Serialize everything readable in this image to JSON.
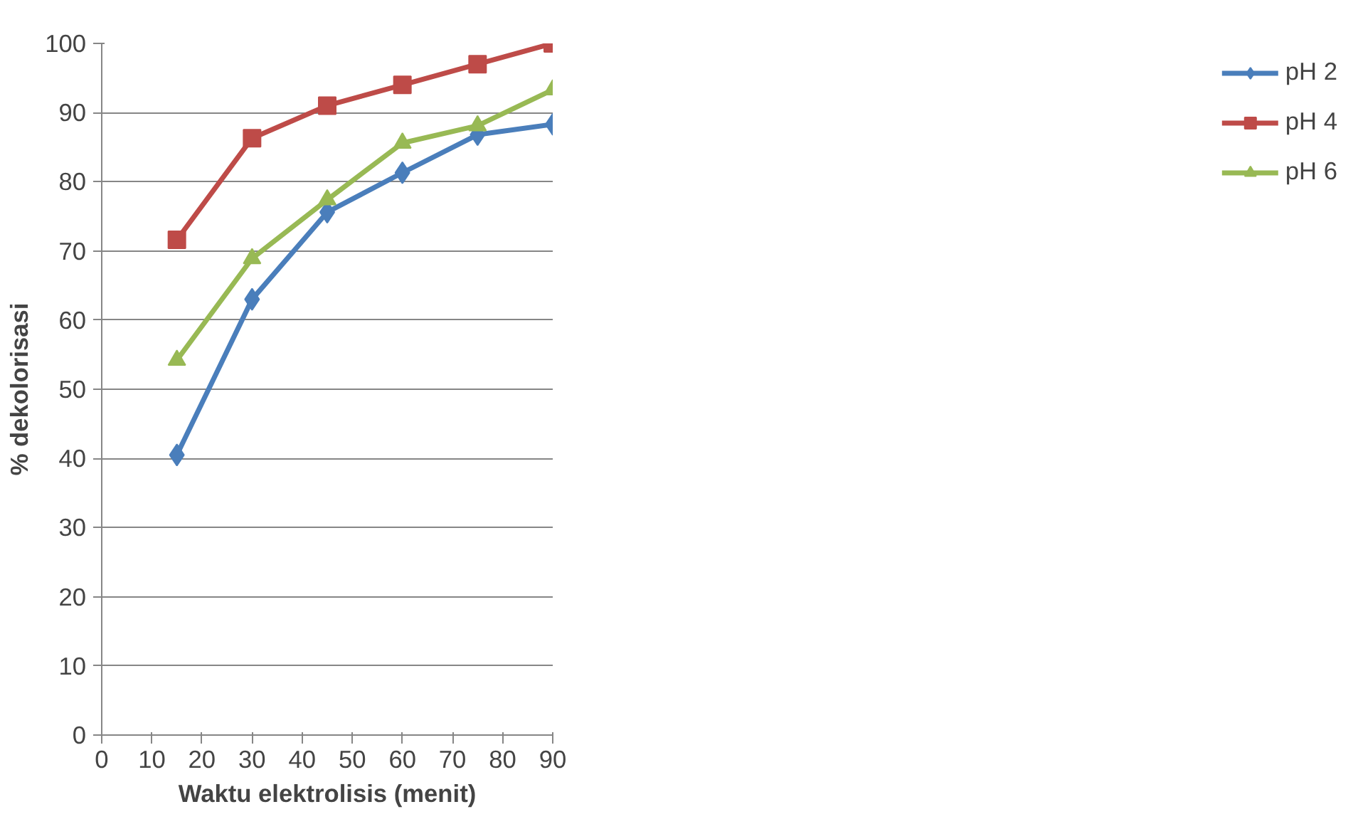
{
  "chart_data": {
    "type": "line",
    "xlabel": "Waktu elektrolisis (menit)",
    "ylabel": "% dekolorisasi",
    "x": [
      15,
      30,
      45,
      60,
      75,
      90
    ],
    "series": [
      {
        "name": "pH 2",
        "color": "#4a7ebb",
        "marker": "diamond",
        "values": [
          40.5,
          63,
          75.6,
          81.3,
          86.8,
          88.3
        ]
      },
      {
        "name": "pH 4",
        "color": "#be4b48",
        "marker": "square",
        "values": [
          71.6,
          86.3,
          91,
          94,
          97,
          100
        ]
      },
      {
        "name": "pH 6",
        "color": "#98b954",
        "marker": "triangle",
        "values": [
          54.2,
          68.9,
          77.4,
          85.6,
          88.1,
          93.3
        ]
      }
    ],
    "xlim": [
      0,
      90
    ],
    "xticks": [
      0,
      10,
      20,
      30,
      40,
      50,
      60,
      70,
      80,
      90
    ],
    "ylim": [
      0,
      100
    ],
    "yticks": [
      0,
      10,
      20,
      30,
      40,
      50,
      60,
      70,
      80,
      90,
      100
    ],
    "grid": "y",
    "legend": "right",
    "line_style": "solid"
  }
}
